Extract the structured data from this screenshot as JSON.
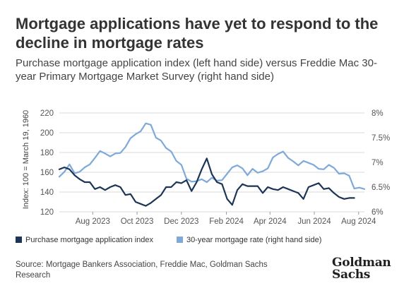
{
  "title": "Mortgage applications have yet to respond to the decline in mortgage rates",
  "subtitle": "Purchase mortgage application index (left hand side) versus Freddie Mac 30-year Primary Mortgage Market Survey (right hand side)",
  "source": "Source: Mortgage Bankers Association, Freddie Mac, Goldman Sachs Research",
  "logo": {
    "line1": "Goldman",
    "line2": "Sachs"
  },
  "colors": {
    "index": "#1c3557",
    "rate": "#7ea9d9",
    "grid": "#d9d9d9",
    "axis_text": "#555555"
  },
  "chart_data": {
    "type": "line",
    "ylabel_left": "Index: 100 = March 19, 1960",
    "ylim_left": [
      120,
      220
    ],
    "yticks_left": [
      "120",
      "140",
      "160",
      "180",
      "200",
      "220"
    ],
    "ylim_right": [
      6.0,
      8.0
    ],
    "yticks_right": [
      "6%",
      "6.5%",
      "7%",
      "7.5%",
      "8%"
    ],
    "x_start": "2023-06-30",
    "x_end": "2024-08-23",
    "xticks": [
      {
        "label": "Aug 2023",
        "date": "2023-08-15"
      },
      {
        "label": "Oct 2023",
        "date": "2023-10-15"
      },
      {
        "label": "Dec 2023",
        "date": "2023-12-15"
      },
      {
        "label": "Feb 2024",
        "date": "2024-02-15"
      },
      {
        "label": "Apr 2024",
        "date": "2024-04-15"
      },
      {
        "label": "Jun 2024",
        "date": "2024-06-15"
      },
      {
        "label": "Aug 2024",
        "date": "2024-08-15"
      }
    ],
    "grid": true,
    "legend_position": "bottom",
    "series": [
      {
        "name": "Purchase mortgage application index",
        "axis": "left",
        "points": [
          [
            "2023-06-30",
            163
          ],
          [
            "2023-07-07",
            165
          ],
          [
            "2023-07-14",
            163
          ],
          [
            "2023-07-21",
            157
          ],
          [
            "2023-07-28",
            153
          ],
          [
            "2023-08-04",
            150
          ],
          [
            "2023-08-11",
            150
          ],
          [
            "2023-08-18",
            143
          ],
          [
            "2023-08-25",
            145
          ],
          [
            "2023-09-01",
            142
          ],
          [
            "2023-09-08",
            145
          ],
          [
            "2023-09-15",
            147
          ],
          [
            "2023-09-22",
            145
          ],
          [
            "2023-09-29",
            137
          ],
          [
            "2023-10-06",
            138
          ],
          [
            "2023-10-13",
            130
          ],
          [
            "2023-10-20",
            128
          ],
          [
            "2023-10-27",
            126
          ],
          [
            "2023-11-03",
            129
          ],
          [
            "2023-11-10",
            133
          ],
          [
            "2023-11-17",
            137
          ],
          [
            "2023-11-24",
            145
          ],
          [
            "2023-12-01",
            145
          ],
          [
            "2023-12-08",
            150
          ],
          [
            "2023-12-15",
            149
          ],
          [
            "2023-12-22",
            152
          ],
          [
            "2023-12-29",
            141
          ],
          [
            "2024-01-05",
            150
          ],
          [
            "2024-01-12",
            163
          ],
          [
            "2024-01-19",
            174
          ],
          [
            "2024-01-26",
            158
          ],
          [
            "2024-02-02",
            150
          ],
          [
            "2024-02-09",
            148
          ],
          [
            "2024-02-16",
            133
          ],
          [
            "2024-02-23",
            127
          ],
          [
            "2024-03-01",
            142
          ],
          [
            "2024-03-08",
            148
          ],
          [
            "2024-03-15",
            146
          ],
          [
            "2024-03-22",
            146
          ],
          [
            "2024-03-29",
            146
          ],
          [
            "2024-04-05",
            139
          ],
          [
            "2024-04-12",
            145
          ],
          [
            "2024-04-19",
            143
          ],
          [
            "2024-04-26",
            142
          ],
          [
            "2024-05-03",
            145
          ],
          [
            "2024-05-10",
            143
          ],
          [
            "2024-05-17",
            141
          ],
          [
            "2024-05-24",
            139
          ],
          [
            "2024-05-31",
            133
          ],
          [
            "2024-06-07",
            145
          ],
          [
            "2024-06-14",
            147
          ],
          [
            "2024-06-21",
            149
          ],
          [
            "2024-06-28",
            143
          ],
          [
            "2024-07-05",
            144
          ],
          [
            "2024-07-12",
            139
          ],
          [
            "2024-07-19",
            135
          ],
          [
            "2024-07-26",
            133
          ],
          [
            "2024-08-02",
            134
          ],
          [
            "2024-08-09",
            134
          ]
        ]
      },
      {
        "name": "30-year mortgage rate (right hand side)",
        "axis": "right",
        "points": [
          [
            "2023-06-30",
            6.71
          ],
          [
            "2023-07-07",
            6.81
          ],
          [
            "2023-07-14",
            6.96
          ],
          [
            "2023-07-21",
            6.78
          ],
          [
            "2023-07-28",
            6.81
          ],
          [
            "2023-08-04",
            6.9
          ],
          [
            "2023-08-11",
            6.96
          ],
          [
            "2023-08-18",
            7.09
          ],
          [
            "2023-08-25",
            7.23
          ],
          [
            "2023-09-01",
            7.18
          ],
          [
            "2023-09-08",
            7.12
          ],
          [
            "2023-09-15",
            7.18
          ],
          [
            "2023-09-22",
            7.19
          ],
          [
            "2023-09-29",
            7.31
          ],
          [
            "2023-10-06",
            7.49
          ],
          [
            "2023-10-13",
            7.57
          ],
          [
            "2023-10-20",
            7.63
          ],
          [
            "2023-10-27",
            7.79
          ],
          [
            "2023-11-03",
            7.76
          ],
          [
            "2023-11-10",
            7.5
          ],
          [
            "2023-11-17",
            7.44
          ],
          [
            "2023-11-24",
            7.29
          ],
          [
            "2023-12-01",
            7.22
          ],
          [
            "2023-12-08",
            7.03
          ],
          [
            "2023-12-15",
            6.95
          ],
          [
            "2023-12-22",
            6.67
          ],
          [
            "2023-12-29",
            6.61
          ],
          [
            "2024-01-05",
            6.62
          ],
          [
            "2024-01-12",
            6.66
          ],
          [
            "2024-01-19",
            6.6
          ],
          [
            "2024-01-26",
            6.69
          ],
          [
            "2024-02-02",
            6.63
          ],
          [
            "2024-02-09",
            6.64
          ],
          [
            "2024-02-16",
            6.77
          ],
          [
            "2024-02-23",
            6.9
          ],
          [
            "2024-03-01",
            6.94
          ],
          [
            "2024-03-08",
            6.88
          ],
          [
            "2024-03-15",
            6.74
          ],
          [
            "2024-03-22",
            6.87
          ],
          [
            "2024-03-29",
            6.79
          ],
          [
            "2024-04-05",
            6.82
          ],
          [
            "2024-04-12",
            6.88
          ],
          [
            "2024-04-19",
            7.1
          ],
          [
            "2024-04-26",
            7.17
          ],
          [
            "2024-05-03",
            7.22
          ],
          [
            "2024-05-10",
            7.09
          ],
          [
            "2024-05-17",
            7.02
          ],
          [
            "2024-05-24",
            6.94
          ],
          [
            "2024-05-31",
            7.03
          ],
          [
            "2024-06-07",
            6.99
          ],
          [
            "2024-06-14",
            6.95
          ],
          [
            "2024-06-21",
            6.87
          ],
          [
            "2024-06-28",
            6.86
          ],
          [
            "2024-07-05",
            6.95
          ],
          [
            "2024-07-12",
            6.89
          ],
          [
            "2024-07-19",
            6.77
          ],
          [
            "2024-07-26",
            6.78
          ],
          [
            "2024-08-02",
            6.73
          ],
          [
            "2024-08-09",
            6.47
          ],
          [
            "2024-08-16",
            6.49
          ],
          [
            "2024-08-23",
            6.46
          ]
        ]
      }
    ]
  }
}
